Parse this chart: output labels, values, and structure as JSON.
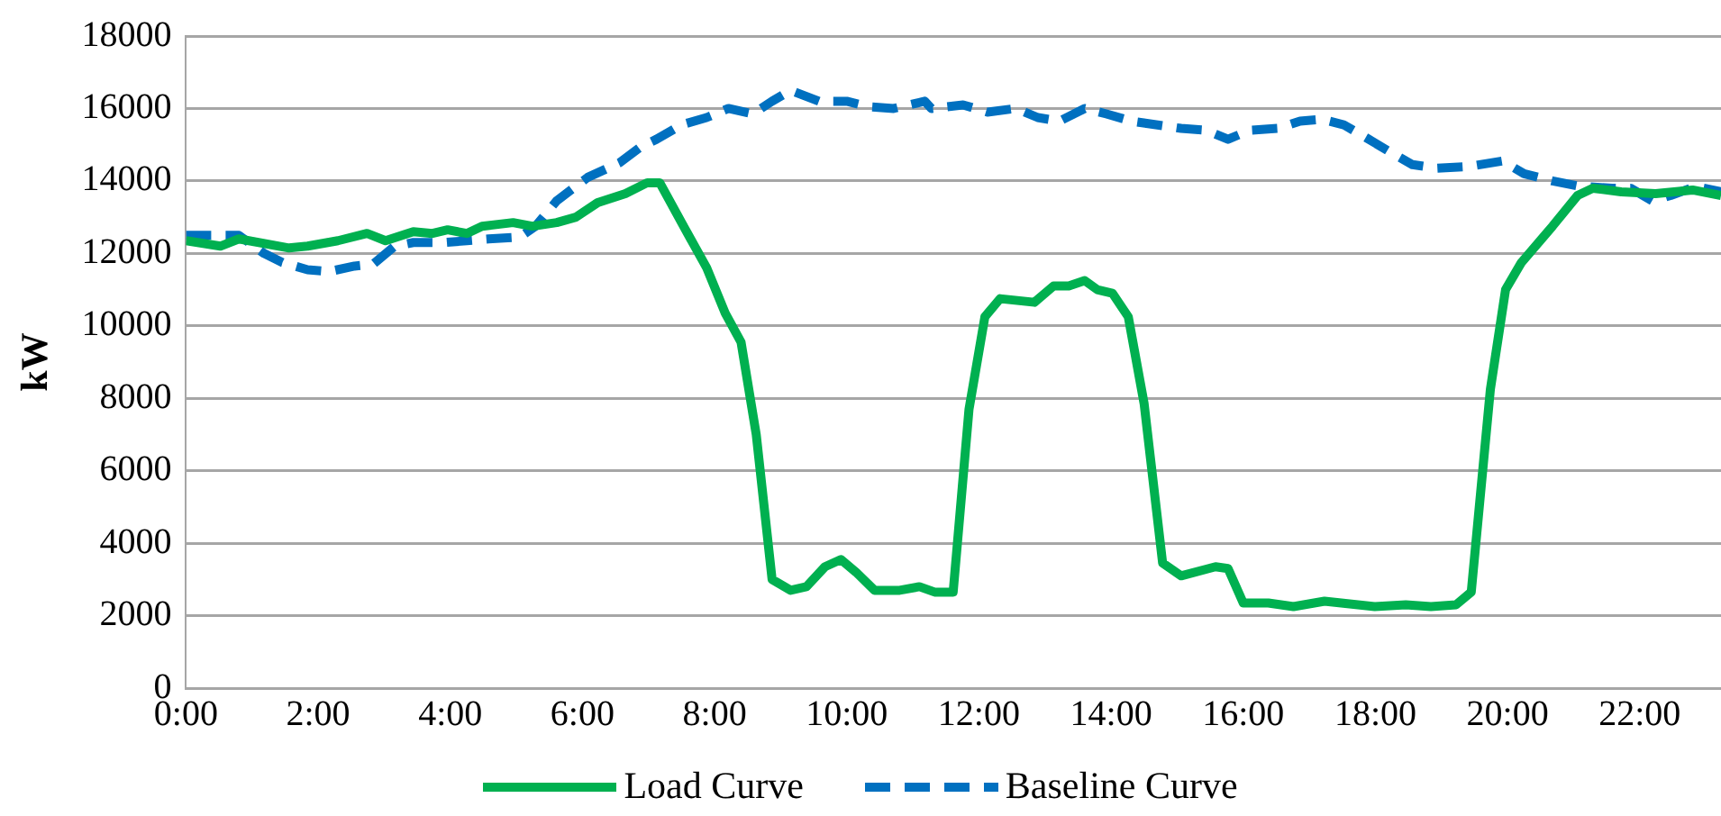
{
  "chart_data": {
    "type": "line",
    "ylabel": "kW",
    "xlim": [
      0,
      23.23
    ],
    "ylim": [
      0,
      18000
    ],
    "xticks": [
      {
        "value": 0,
        "label": "0:00"
      },
      {
        "value": 2,
        "label": "2:00"
      },
      {
        "value": 4,
        "label": "4:00"
      },
      {
        "value": 6,
        "label": "6:00"
      },
      {
        "value": 8,
        "label": "8:00"
      },
      {
        "value": 10,
        "label": "10:00"
      },
      {
        "value": 12,
        "label": "12:00"
      },
      {
        "value": 14,
        "label": "14:00"
      },
      {
        "value": 16,
        "label": "16:00"
      },
      {
        "value": 18,
        "label": "18:00"
      },
      {
        "value": 20,
        "label": "20:00"
      },
      {
        "value": 22,
        "label": "22:00"
      }
    ],
    "yticks": [
      0,
      2000,
      4000,
      6000,
      8000,
      10000,
      12000,
      14000,
      16000,
      18000
    ],
    "grid": "y",
    "legend": "bottom",
    "marker": "none",
    "series": [
      {
        "name": "Load Curve",
        "color": "#00b050",
        "line_style": "solid",
        "x": [
          0,
          0.52,
          0.8,
          1.56,
          1.84,
          2.3,
          2.74,
          3.02,
          3.44,
          3.73,
          3.96,
          4.25,
          4.48,
          4.95,
          5.24,
          5.61,
          5.9,
          6.23,
          6.65,
          6.98,
          7.17,
          7.5,
          7.88,
          8.16,
          8.4,
          8.63,
          8.87,
          9.15,
          9.39,
          9.67,
          9.91,
          10.14,
          10.42,
          10.8,
          11.1,
          11.33,
          11.61,
          11.85,
          12.09,
          12.32,
          12.84,
          13.13,
          13.36,
          13.6,
          13.79,
          14.02,
          14.26,
          14.5,
          14.78,
          15.06,
          15.58,
          15.77,
          16.0,
          16.38,
          16.76,
          17.23,
          17.99,
          18.46,
          18.84,
          19.22,
          19.45,
          19.74,
          19.97,
          20.21,
          20.68,
          21.06,
          21.29,
          21.72,
          22.24,
          22.8,
          23.23
        ],
        "values": [
          12350,
          12200,
          12400,
          12150,
          12200,
          12350,
          12550,
          12350,
          12600,
          12550,
          12650,
          12550,
          12750,
          12850,
          12750,
          12850,
          13000,
          13400,
          13650,
          13950,
          13950,
          12850,
          11600,
          10350,
          9550,
          7000,
          3000,
          2700,
          2800,
          3350,
          3550,
          3200,
          2700,
          2700,
          2800,
          2650,
          2650,
          7700,
          10250,
          10750,
          10650,
          11100,
          11100,
          11250,
          11000,
          10900,
          10250,
          7850,
          3450,
          3100,
          3350,
          3300,
          2350,
          2350,
          2250,
          2400,
          2250,
          2300,
          2250,
          2300,
          2650,
          8250,
          11000,
          11750,
          12750,
          13600,
          13800,
          13700,
          13650,
          13750,
          13600
        ]
      },
      {
        "name": "Baseline Curve",
        "color": "#0070c0",
        "line_style": "dashed",
        "x": [
          0,
          0.42,
          0.8,
          1.18,
          1.46,
          1.84,
          2.17,
          2.55,
          2.83,
          3.16,
          3.44,
          3.91,
          4.25,
          4.58,
          5.05,
          5.29,
          5.61,
          6.08,
          6.56,
          6.89,
          7.12,
          7.5,
          7.88,
          8.21,
          8.58,
          8.87,
          9.15,
          9.58,
          10.0,
          10.33,
          10.71,
          11.18,
          11.28,
          11.76,
          12.13,
          12.56,
          12.89,
          13.22,
          13.6,
          13.93,
          14.31,
          14.68,
          15.06,
          15.44,
          15.77,
          16.1,
          16.52,
          16.86,
          17.19,
          17.52,
          17.9,
          18.22,
          18.56,
          18.93,
          19.41,
          19.92,
          20.25,
          20.68,
          21.1,
          21.58,
          21.86,
          22.19,
          22.47,
          22.85,
          23.23
        ],
        "values": [
          12500,
          12500,
          12500,
          12000,
          11750,
          11550,
          11500,
          11650,
          11700,
          12200,
          12300,
          12300,
          12350,
          12400,
          12450,
          12750,
          13450,
          14100,
          14500,
          14950,
          15150,
          15550,
          15750,
          16000,
          15850,
          16200,
          16500,
          16200,
          16200,
          16050,
          16000,
          16200,
          16000,
          16100,
          15900,
          16000,
          15750,
          15650,
          16000,
          15850,
          15650,
          15550,
          15450,
          15400,
          15150,
          15400,
          15450,
          15650,
          15700,
          15550,
          15150,
          14800,
          14450,
          14350,
          14400,
          14550,
          14200,
          14000,
          13850,
          13800,
          13800,
          13450,
          13600,
          13850,
          13700
        ]
      }
    ]
  }
}
